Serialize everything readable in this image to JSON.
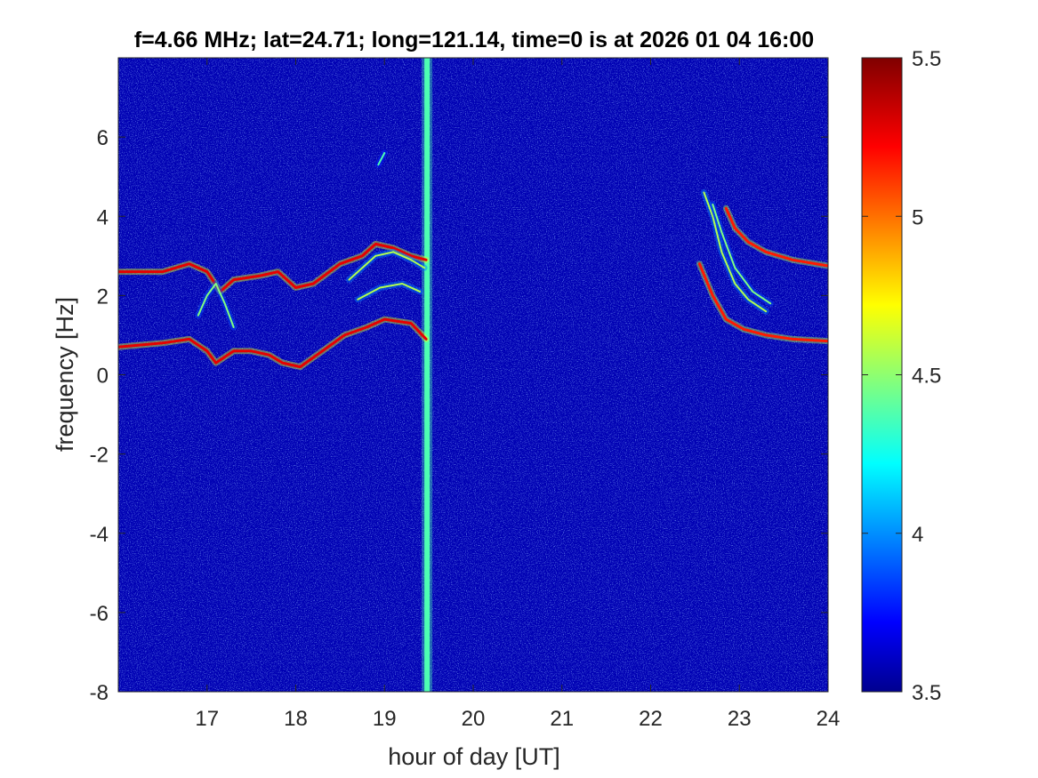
{
  "chart_data": {
    "type": "heatmap",
    "title": "f=4.66 MHz;  lat=24.71; long=121.14, time=0 is at 2026 01 04 16:00",
    "xlabel": "hour of day [UT]",
    "ylabel": "frequency [Hz]",
    "xlim": [
      16,
      24
    ],
    "ylim": [
      -8,
      8
    ],
    "x_ticks": [
      17,
      18,
      19,
      20,
      21,
      22,
      23,
      24
    ],
    "x_tick_labels": [
      "17",
      "18",
      "19",
      "20",
      "21",
      "22",
      "23",
      "24"
    ],
    "y_ticks": [
      -8,
      -6,
      -4,
      -2,
      0,
      2,
      4,
      6
    ],
    "y_tick_labels": [
      "-8",
      "-6",
      "-4",
      "-2",
      "0",
      "2",
      "4",
      "6"
    ],
    "colorbar": {
      "range": [
        3.5,
        5.5
      ],
      "ticks": [
        3.5,
        4,
        4.5,
        5,
        5.5
      ],
      "tick_labels": [
        "3.5",
        "4",
        "4.5",
        "5",
        "5.5"
      ],
      "colormap": "jet"
    },
    "background_level": 3.6,
    "features": [
      {
        "kind": "vertical_band",
        "x": 19.48,
        "level": 4.4
      },
      {
        "kind": "trace",
        "level": 5.3,
        "points": [
          [
            16,
            2.6
          ],
          [
            16.5,
            2.6
          ],
          [
            16.8,
            2.8
          ],
          [
            17.0,
            2.6
          ],
          [
            17.15,
            2.1
          ],
          [
            17.3,
            2.4
          ],
          [
            17.6,
            2.5
          ],
          [
            17.8,
            2.6
          ],
          [
            18.0,
            2.2
          ],
          [
            18.2,
            2.3
          ],
          [
            18.5,
            2.8
          ],
          [
            18.75,
            3.0
          ],
          [
            18.9,
            3.3
          ],
          [
            19.1,
            3.2
          ],
          [
            19.3,
            3.0
          ],
          [
            19.47,
            2.9
          ]
        ]
      },
      {
        "kind": "trace",
        "level": 5.3,
        "points": [
          [
            16,
            0.7
          ],
          [
            16.5,
            0.8
          ],
          [
            16.8,
            0.9
          ],
          [
            17.0,
            0.6
          ],
          [
            17.1,
            0.3
          ],
          [
            17.3,
            0.6
          ],
          [
            17.5,
            0.6
          ],
          [
            17.7,
            0.5
          ],
          [
            17.85,
            0.3
          ],
          [
            18.05,
            0.2
          ],
          [
            18.3,
            0.6
          ],
          [
            18.55,
            1.0
          ],
          [
            18.8,
            1.2
          ],
          [
            19.0,
            1.4
          ],
          [
            19.3,
            1.3
          ],
          [
            19.47,
            0.9
          ]
        ]
      },
      {
        "kind": "trace",
        "level": 4.6,
        "points": [
          [
            18.6,
            2.4
          ],
          [
            18.9,
            3.0
          ],
          [
            19.1,
            3.1
          ],
          [
            19.3,
            2.9
          ],
          [
            19.45,
            2.7
          ]
        ]
      },
      {
        "kind": "trace",
        "level": 4.6,
        "points": [
          [
            18.7,
            1.9
          ],
          [
            18.95,
            2.2
          ],
          [
            19.2,
            2.3
          ],
          [
            19.4,
            2.1
          ]
        ]
      },
      {
        "kind": "trace",
        "level": 4.5,
        "points": [
          [
            16.9,
            1.5
          ],
          [
            17.0,
            2.0
          ],
          [
            17.1,
            2.3
          ],
          [
            17.2,
            1.8
          ],
          [
            17.3,
            1.2
          ]
        ]
      },
      {
        "kind": "trace",
        "level": 5.2,
        "points": [
          [
            22.85,
            4.2
          ],
          [
            22.95,
            3.7
          ],
          [
            23.1,
            3.35
          ],
          [
            23.3,
            3.1
          ],
          [
            23.6,
            2.9
          ],
          [
            24.0,
            2.75
          ]
        ]
      },
      {
        "kind": "trace",
        "level": 5.2,
        "points": [
          [
            22.55,
            2.8
          ],
          [
            22.7,
            2.0
          ],
          [
            22.85,
            1.4
          ],
          [
            23.05,
            1.15
          ],
          [
            23.3,
            1.0
          ],
          [
            23.6,
            0.9
          ],
          [
            24.0,
            0.85
          ]
        ]
      },
      {
        "kind": "trace",
        "level": 4.6,
        "points": [
          [
            22.6,
            4.6
          ],
          [
            22.7,
            4.0
          ],
          [
            22.8,
            3.1
          ],
          [
            22.95,
            2.3
          ],
          [
            23.1,
            1.9
          ],
          [
            23.3,
            1.6
          ]
        ]
      },
      {
        "kind": "trace",
        "level": 4.5,
        "points": [
          [
            22.7,
            4.3
          ],
          [
            22.8,
            3.6
          ],
          [
            22.95,
            2.7
          ],
          [
            23.15,
            2.1
          ],
          [
            23.35,
            1.8
          ]
        ]
      },
      {
        "kind": "trace",
        "level": 4.4,
        "points": [
          [
            18.93,
            5.3
          ],
          [
            19.0,
            5.6
          ]
        ]
      }
    ]
  }
}
